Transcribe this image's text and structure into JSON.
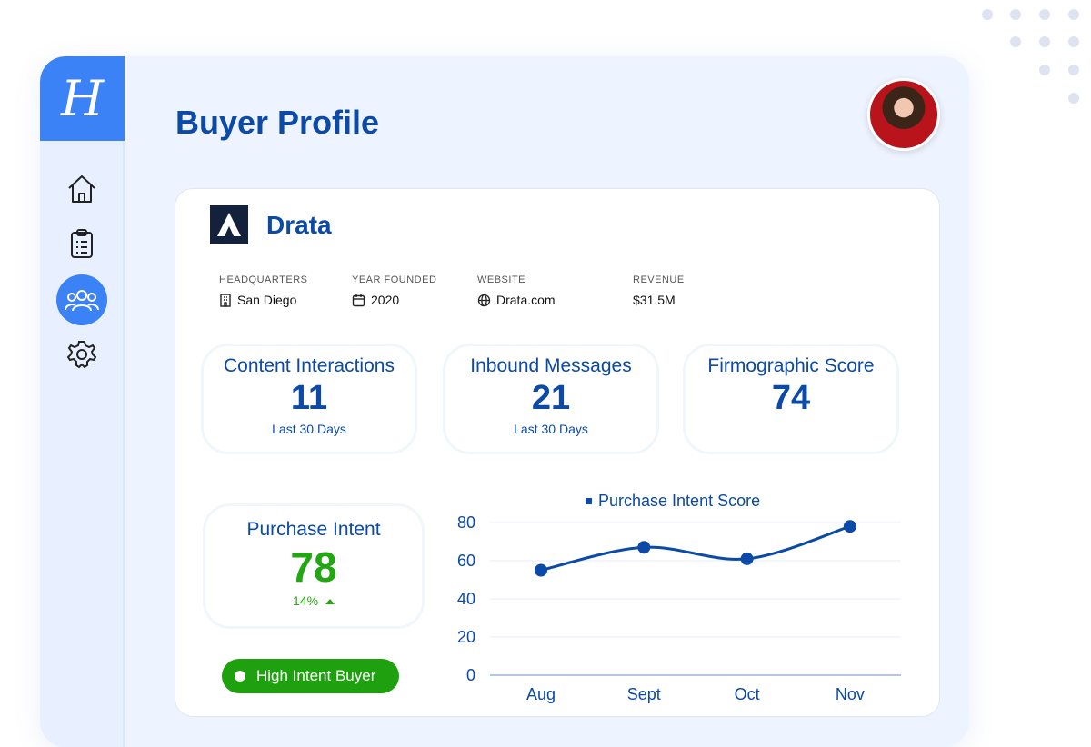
{
  "page": {
    "title": "Buyer Profile"
  },
  "sidebar": {
    "logo_letter": "H",
    "items": [
      {
        "name": "home-icon"
      },
      {
        "name": "clipboard-icon"
      },
      {
        "name": "users-icon",
        "active": true
      },
      {
        "name": "gear-icon"
      }
    ]
  },
  "company": {
    "name": "Drata",
    "headquarters": {
      "label": "HEADQUARTERS",
      "value": "San Diego"
    },
    "year_founded": {
      "label": "YEAR FOUNDED",
      "value": "2020"
    },
    "website": {
      "label": "WEBSITE",
      "value": "Drata.com"
    },
    "revenue": {
      "label": "REVENUE",
      "value": "$31.5M"
    }
  },
  "stats": [
    {
      "label": "Content Interactions",
      "value": "11",
      "sub": "Last 30 Days"
    },
    {
      "label": "Inbound Messages",
      "value": "21",
      "sub": "Last 30 Days"
    },
    {
      "label": "Firmographic Score",
      "value": "74",
      "sub": ""
    }
  ],
  "intent": {
    "label": "Purchase Intent",
    "value": "78",
    "change": "14%"
  },
  "badge": {
    "label": "High Intent Buyer"
  },
  "colors": {
    "primary": "#0b4aa6",
    "accent": "#3b82f6",
    "positive": "#22a612"
  },
  "chart_data": {
    "type": "line",
    "categories": [
      "Aug",
      "Sept",
      "Oct",
      "Nov"
    ],
    "series": [
      {
        "name": "Purchase Intent Score",
        "values": [
          55,
          67,
          61,
          78
        ]
      }
    ],
    "ylim": [
      0,
      80
    ],
    "yticks": [
      0,
      20,
      40,
      60,
      80
    ],
    "grid": true,
    "legend": "top"
  }
}
